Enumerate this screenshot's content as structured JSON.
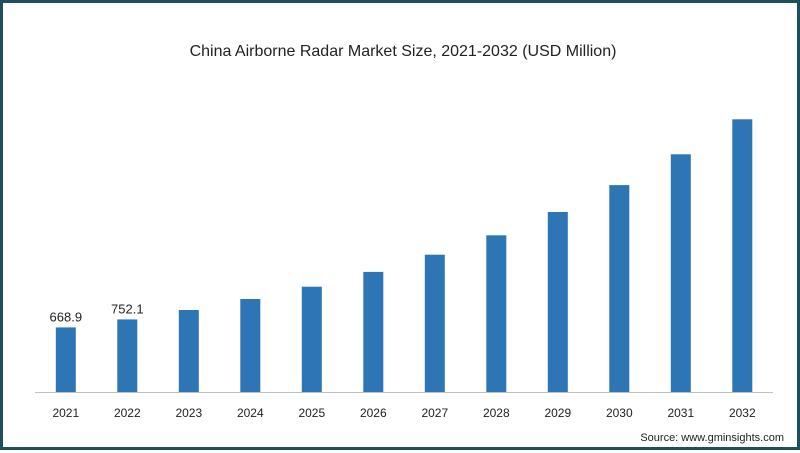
{
  "chart_data": {
    "type": "bar",
    "title": "China Airborne Radar Market Size, 2021-2032 (USD Million)",
    "xlabel": "",
    "ylabel": "",
    "categories": [
      "2021",
      "2022",
      "2023",
      "2024",
      "2025",
      "2026",
      "2027",
      "2028",
      "2029",
      "2030",
      "2031",
      "2032"
    ],
    "values": [
      668.9,
      752.1,
      849,
      963,
      1090,
      1244,
      1422,
      1623,
      1864,
      2143,
      2462,
      2824
    ],
    "data_labels": [
      "668.9",
      "752.1",
      "",
      "",
      "",
      "",
      "",
      "",
      "",
      "",
      "",
      ""
    ],
    "ylim": [
      0,
      3200
    ],
    "grid": false,
    "bar_color": "#2e75b6",
    "axis_color": "#bfbfbf"
  },
  "source": "Source: www.gminsights.com",
  "frame_color": "#1d4e5a"
}
